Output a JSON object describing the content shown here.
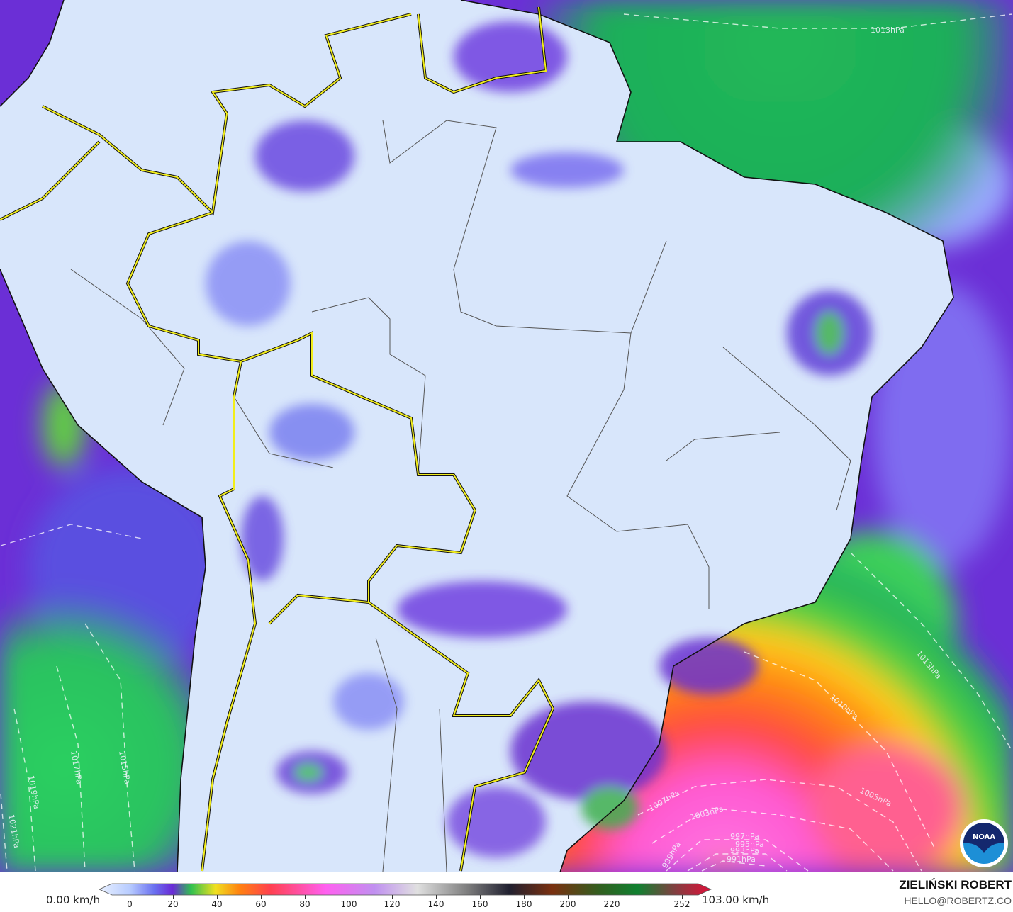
{
  "map": {
    "variable": "wind speed",
    "colors": {
      "land_calm": "#d8e6fb",
      "ocean_purple": "#6b2fd6",
      "green": "#22c45a",
      "orange": "#ff8a10",
      "magenta": "#ff5ad8",
      "border_yellow": "#f2ee1a",
      "state_gray": "#555555"
    },
    "isobars": [
      {
        "label": "1013hPa"
      },
      {
        "label": "1013hPa"
      },
      {
        "label": "1010hPa"
      },
      {
        "label": "1007hPa"
      },
      {
        "label": "1005hPa"
      },
      {
        "label": "1003hPa"
      },
      {
        "label": "999hPa"
      },
      {
        "label": "997hPa"
      },
      {
        "label": "995hPa"
      },
      {
        "label": "993hPa"
      },
      {
        "label": "991hPa"
      },
      {
        "label": "1017hPa"
      },
      {
        "label": "1015hPa"
      },
      {
        "label": "1019hPa"
      },
      {
        "label": "1021hPa"
      }
    ],
    "logo": "NOAA"
  },
  "legend": {
    "min_label": "0.00 km/h",
    "max_label": "103.00 km/h",
    "ticks": [
      "0",
      "20",
      "40",
      "60",
      "80",
      "100",
      "120",
      "140",
      "160",
      "180",
      "200",
      "220",
      "252"
    ]
  },
  "credit": {
    "name": "ZIELIŃSKI ROBERT",
    "email": "HELLO@ROBERTZ.CO"
  }
}
